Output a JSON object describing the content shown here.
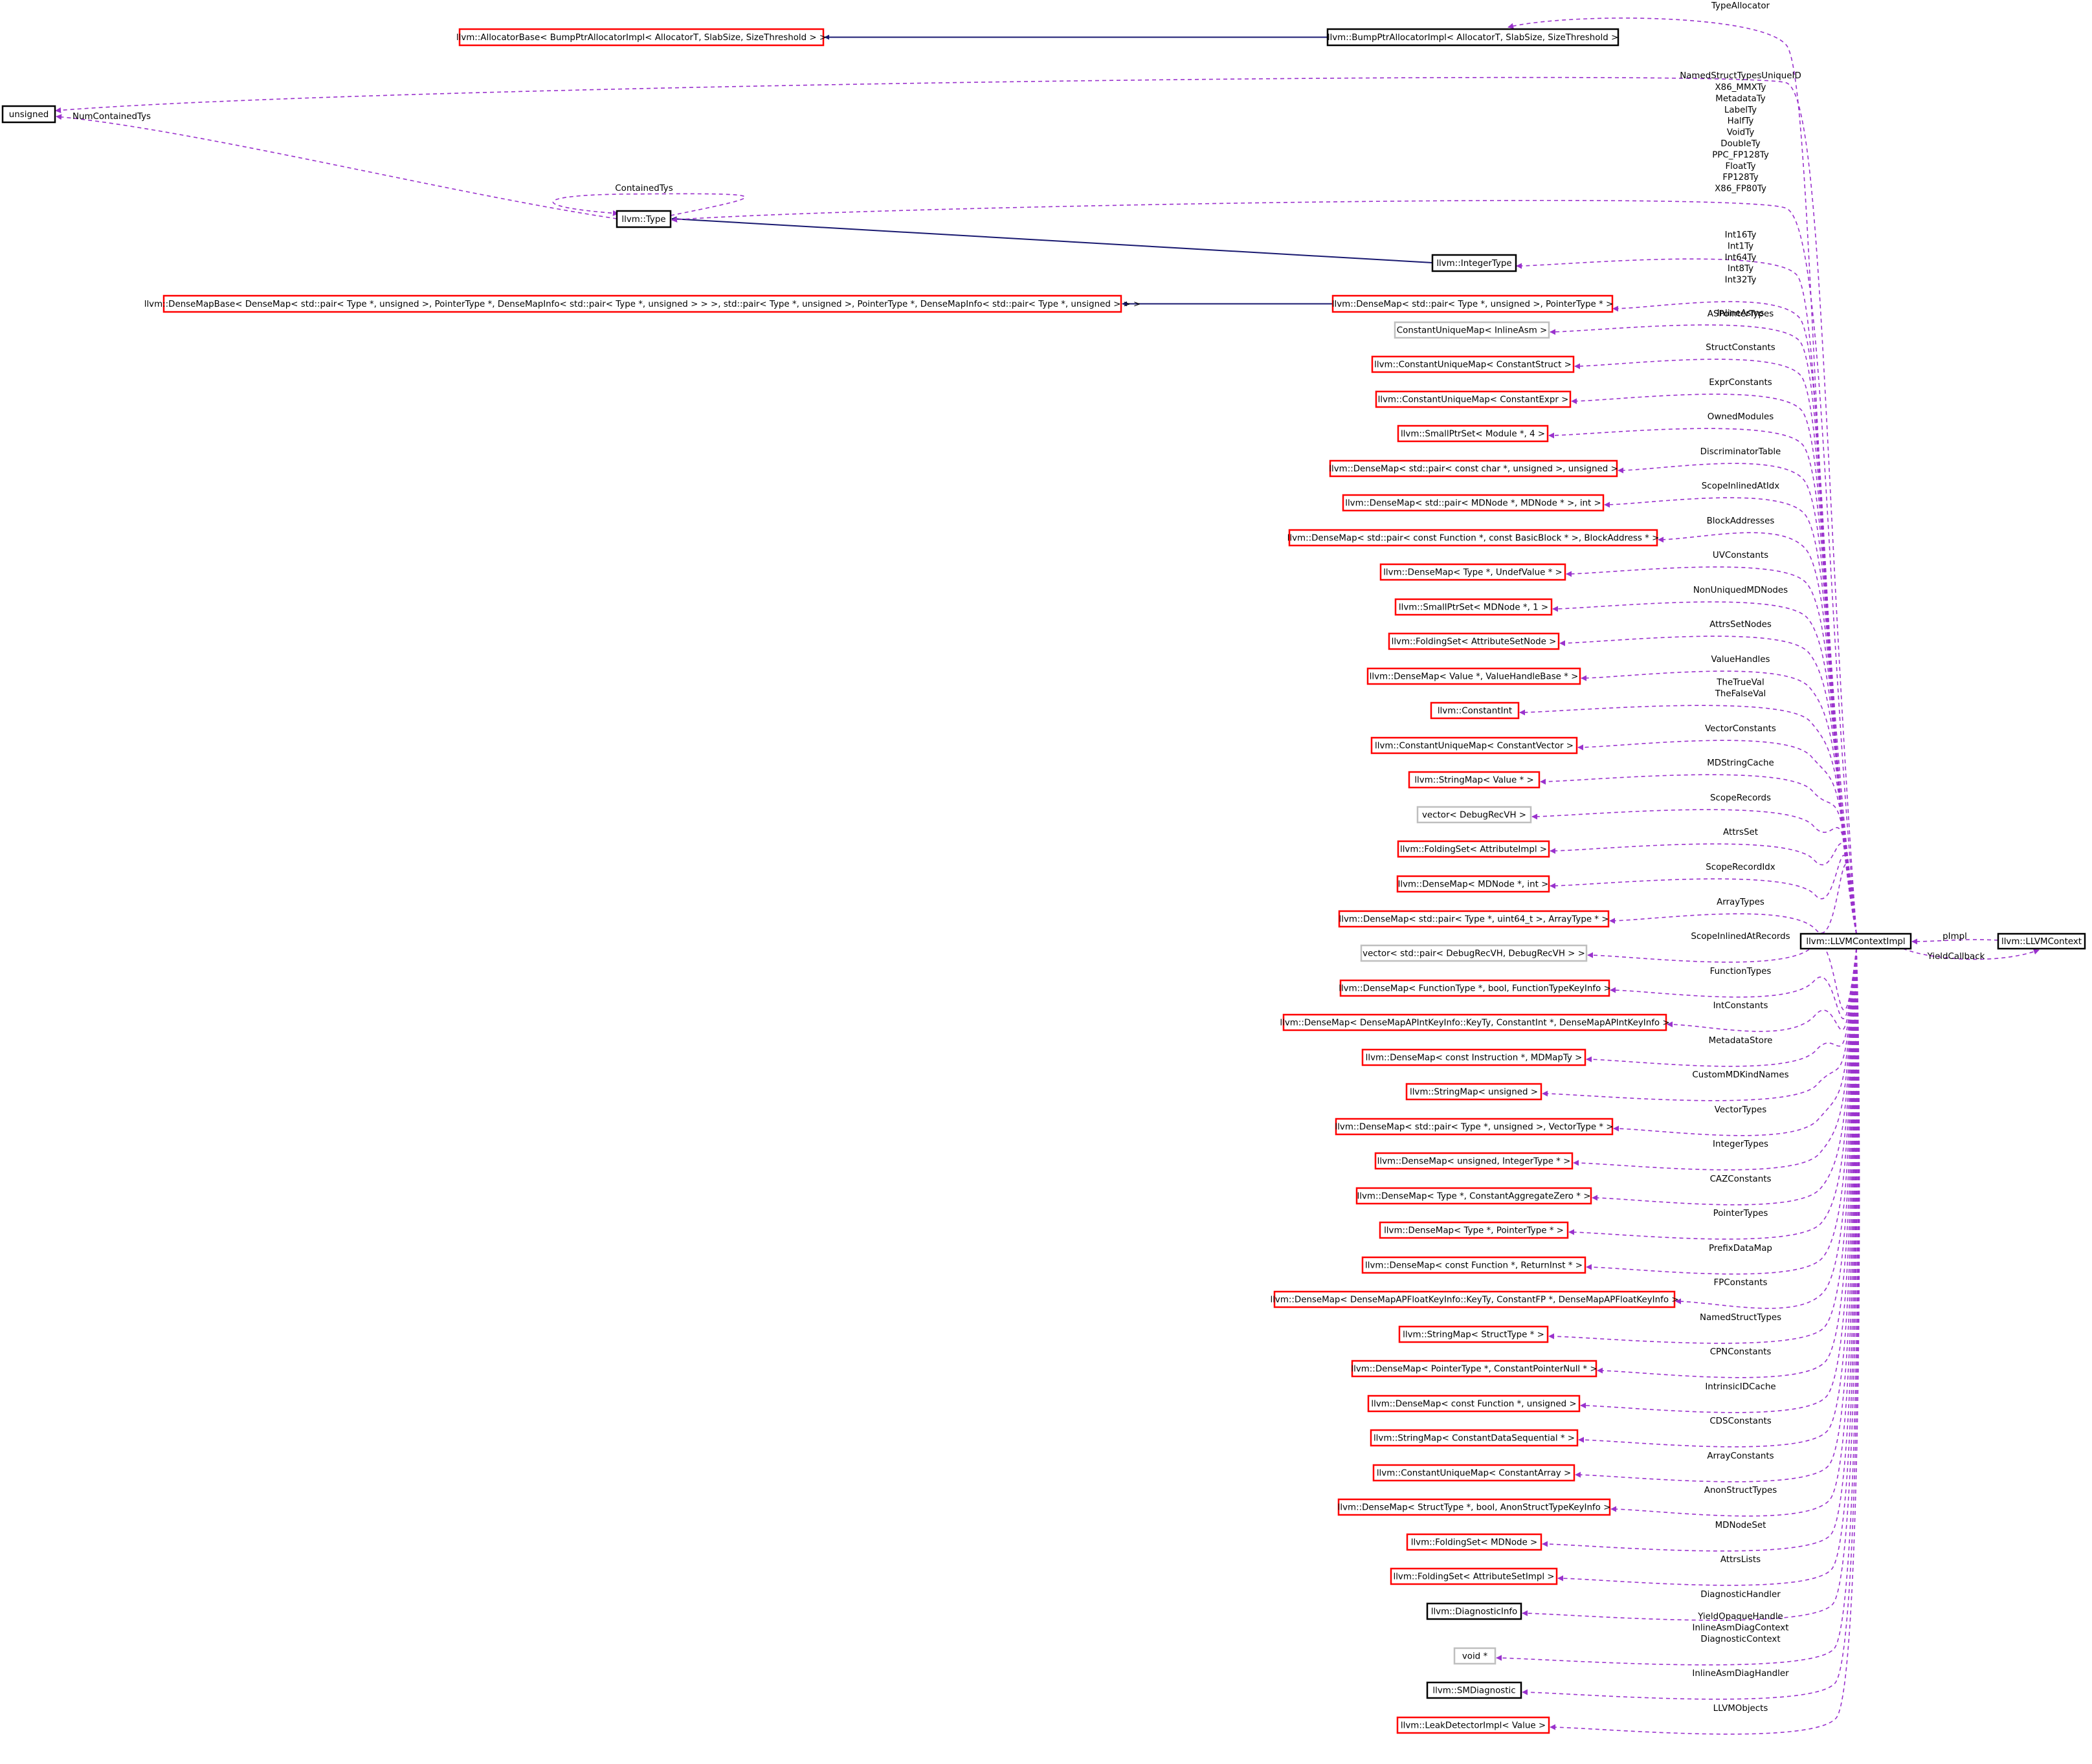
{
  "colors": {
    "inherit_edge": "#191970",
    "member_edge": "#9a32cd",
    "border_red": "#ff0000",
    "border_black": "#000000",
    "border_gray": "#bfbfbf",
    "focus_fill": "#bfbfbf"
  },
  "center": {
    "id": "impl",
    "label": "llvm::LLVMContextImpl"
  },
  "context": {
    "id": "ctx",
    "label": "llvm::LLVMContext"
  },
  "nodes": [
    {
      "id": "allocbase",
      "label": "llvm::AllocatorBase< BumpPtrAllocatorImpl< AllocatorT, SlabSize, SizeThreshold > >",
      "border": "red"
    },
    {
      "id": "bump",
      "label": "llvm::BumpPtrAllocatorImpl< AllocatorT, SlabSize, SizeThreshold >",
      "border": "black"
    },
    {
      "id": "unsigned",
      "label": "unsigned",
      "border": "black"
    },
    {
      "id": "type",
      "label": "llvm::Type",
      "border": "black"
    },
    {
      "id": "inttype",
      "label": "llvm::IntegerType",
      "border": "black"
    },
    {
      "id": "densebase",
      "label": "llvm::DenseMapBase< DenseMap< std::pair< Type *, unsigned >, PointerType *, DenseMapInfo< std::pair< Type *, unsigned > > >, std::pair< Type *, unsigned >, PointerType *, DenseMapInfo< std::pair< Type *, unsigned > > >",
      "border": "red"
    },
    {
      "id": "asptr",
      "label": "llvm::DenseMap< std::pair< Type *, unsigned >, PointerType * >",
      "border": "red"
    },
    {
      "id": "n08",
      "label": "ConstantUniqueMap< InlineAsm >",
      "border": "gray"
    },
    {
      "id": "n09",
      "label": "llvm::ConstantUniqueMap< ConstantStruct >",
      "border": "red"
    },
    {
      "id": "n10",
      "label": "llvm::ConstantUniqueMap< ConstantExpr >",
      "border": "red"
    },
    {
      "id": "n11",
      "label": "llvm::SmallPtrSet< Module *, 4 >",
      "border": "red"
    },
    {
      "id": "n12",
      "label": "llvm::DenseMap< std::pair< const char *, unsigned >, unsigned >",
      "border": "red"
    },
    {
      "id": "n13",
      "label": "llvm::DenseMap< std::pair< MDNode *, MDNode * >, int >",
      "border": "red"
    },
    {
      "id": "n14",
      "label": "llvm::DenseMap< std::pair< const Function *, const BasicBlock * >, BlockAddress * >",
      "border": "red"
    },
    {
      "id": "n15",
      "label": "llvm::DenseMap< Type *, UndefValue * >",
      "border": "red"
    },
    {
      "id": "n16",
      "label": "llvm::SmallPtrSet< MDNode *, 1 >",
      "border": "red"
    },
    {
      "id": "n17",
      "label": "llvm::FoldingSet< AttributeSetNode >",
      "border": "red"
    },
    {
      "id": "n18",
      "label": "llvm::DenseMap< Value *, ValueHandleBase * >",
      "border": "red"
    },
    {
      "id": "n19",
      "label": "llvm::ConstantInt",
      "border": "red"
    },
    {
      "id": "n20",
      "label": "llvm::ConstantUniqueMap< ConstantVector >",
      "border": "red"
    },
    {
      "id": "n21",
      "label": "llvm::StringMap< Value * >",
      "border": "red"
    },
    {
      "id": "n22",
      "label": "vector< DebugRecVH >",
      "border": "gray"
    },
    {
      "id": "n23",
      "label": "llvm::FoldingSet< AttributeImpl >",
      "border": "red"
    },
    {
      "id": "n24",
      "label": "llvm::DenseMap< MDNode *, int >",
      "border": "red"
    },
    {
      "id": "n25",
      "label": "llvm::DenseMap< std::pair< Type *, uint64_t >, ArrayType * >",
      "border": "red"
    },
    {
      "id": "n26",
      "label": "vector< std::pair< DebugRecVH, DebugRecVH > >",
      "border": "gray"
    },
    {
      "id": "n27",
      "label": "llvm::DenseMap< FunctionType *, bool, FunctionTypeKeyInfo >",
      "border": "red"
    },
    {
      "id": "n28",
      "label": "llvm::DenseMap< DenseMapAPIntKeyInfo::KeyTy, ConstantInt *, DenseMapAPIntKeyInfo >",
      "border": "red"
    },
    {
      "id": "n29",
      "label": "llvm::DenseMap< const Instruction *, MDMapTy >",
      "border": "red"
    },
    {
      "id": "n30",
      "label": "llvm::StringMap< unsigned >",
      "border": "red"
    },
    {
      "id": "n31",
      "label": "llvm::DenseMap< std::pair< Type *, unsigned >, VectorType * >",
      "border": "red"
    },
    {
      "id": "n32",
      "label": "llvm::DenseMap< unsigned, IntegerType * >",
      "border": "red"
    },
    {
      "id": "n33",
      "label": "llvm::DenseMap< Type *, ConstantAggregateZero * >",
      "border": "red"
    },
    {
      "id": "n34",
      "label": "llvm::DenseMap< Type *, PointerType * >",
      "border": "red"
    },
    {
      "id": "n35",
      "label": "llvm::DenseMap< const Function *, ReturnInst * >",
      "border": "red"
    },
    {
      "id": "n36",
      "label": "llvm::DenseMap< DenseMapAPFloatKeyInfo::KeyTy, ConstantFP *, DenseMapAPFloatKeyInfo >",
      "border": "red"
    },
    {
      "id": "n37",
      "label": "llvm::StringMap< StructType * >",
      "border": "red"
    },
    {
      "id": "n38",
      "label": "llvm::DenseMap< PointerType *, ConstantPointerNull * >",
      "border": "red"
    },
    {
      "id": "n39",
      "label": "llvm::DenseMap< const Function *, unsigned >",
      "border": "red"
    },
    {
      "id": "n40",
      "label": "llvm::StringMap< ConstantDataSequential * >",
      "border": "red"
    },
    {
      "id": "n41",
      "label": "llvm::ConstantUniqueMap< ConstantArray >",
      "border": "red"
    },
    {
      "id": "n42",
      "label": "llvm::DenseMap< StructType *, bool, AnonStructTypeKeyInfo >",
      "border": "red"
    },
    {
      "id": "n43",
      "label": "llvm::FoldingSet< MDNode >",
      "border": "red"
    },
    {
      "id": "n44",
      "label": "llvm::FoldingSet< AttributeSetImpl >",
      "border": "red"
    },
    {
      "id": "n45",
      "label": "llvm::DiagnosticInfo",
      "border": "black"
    },
    {
      "id": "n46",
      "label": "void *",
      "border": "gray"
    },
    {
      "id": "n47",
      "label": "llvm::SMDiagnostic",
      "border": "black"
    },
    {
      "id": "n48",
      "label": "llvm::LeakDetectorImpl< Value >",
      "border": "red"
    }
  ],
  "inheritance": [
    {
      "from": "bump",
      "to": "allocbase"
    },
    {
      "from": "inttype",
      "to": "type"
    },
    {
      "from": "asptr",
      "to": "densebase"
    }
  ],
  "members": [
    {
      "target": "bump",
      "labels": [
        "TypeAllocator"
      ]
    },
    {
      "target": "unsigned",
      "labels": [
        "NamedStructTypesUniqueID"
      ]
    },
    {
      "target": "type",
      "labels": [
        "X86_MMXTy",
        "MetadataTy",
        "LabelTy",
        "HalfTy",
        "VoidTy",
        "DoubleTy",
        "PPC_FP128Ty",
        "FloatTy",
        "FP128Ty",
        "X86_FP80Ty"
      ]
    },
    {
      "target": "inttype",
      "labels": [
        "Int16Ty",
        "Int1Ty",
        "Int64Ty",
        "Int8Ty",
        "Int32Ty"
      ]
    },
    {
      "target": "asptr",
      "labels": [
        "ASPointerTypes"
      ]
    },
    {
      "target": "n08",
      "labels": [
        "InlineAsms"
      ]
    },
    {
      "target": "n09",
      "labels": [
        "StructConstants"
      ]
    },
    {
      "target": "n10",
      "labels": [
        "ExprConstants"
      ]
    },
    {
      "target": "n11",
      "labels": [
        "OwnedModules"
      ]
    },
    {
      "target": "n12",
      "labels": [
        "DiscriminatorTable"
      ]
    },
    {
      "target": "n13",
      "labels": [
        "ScopeInlinedAtIdx"
      ]
    },
    {
      "target": "n14",
      "labels": [
        "BlockAddresses"
      ]
    },
    {
      "target": "n15",
      "labels": [
        "UVConstants"
      ]
    },
    {
      "target": "n16",
      "labels": [
        "NonUniquedMDNodes"
      ]
    },
    {
      "target": "n17",
      "labels": [
        "AttrsSetNodes"
      ]
    },
    {
      "target": "n18",
      "labels": [
        "ValueHandles"
      ]
    },
    {
      "target": "n19",
      "labels": [
        "TheTrueVal",
        "TheFalseVal"
      ]
    },
    {
      "target": "n20",
      "labels": [
        "VectorConstants"
      ]
    },
    {
      "target": "n21",
      "labels": [
        "MDStringCache"
      ]
    },
    {
      "target": "n22",
      "labels": [
        "ScopeRecords"
      ]
    },
    {
      "target": "n23",
      "labels": [
        "AttrsSet"
      ]
    },
    {
      "target": "n24",
      "labels": [
        "ScopeRecordIdx"
      ]
    },
    {
      "target": "n25",
      "labels": [
        "ArrayTypes"
      ]
    },
    {
      "target": "n26",
      "labels": [
        "ScopeInlinedAtRecords"
      ]
    },
    {
      "target": "n27",
      "labels": [
        "FunctionTypes"
      ]
    },
    {
      "target": "n28",
      "labels": [
        "IntConstants"
      ]
    },
    {
      "target": "n29",
      "labels": [
        "MetadataStore"
      ]
    },
    {
      "target": "n30",
      "labels": [
        "CustomMDKindNames"
      ]
    },
    {
      "target": "n31",
      "labels": [
        "VectorTypes"
      ]
    },
    {
      "target": "n32",
      "labels": [
        "IntegerTypes"
      ]
    },
    {
      "target": "n33",
      "labels": [
        "CAZConstants"
      ]
    },
    {
      "target": "n34",
      "labels": [
        "PointerTypes"
      ]
    },
    {
      "target": "n35",
      "labels": [
        "PrefixDataMap"
      ]
    },
    {
      "target": "n36",
      "labels": [
        "FPConstants"
      ]
    },
    {
      "target": "n37",
      "labels": [
        "NamedStructTypes"
      ]
    },
    {
      "target": "n38",
      "labels": [
        "CPNConstants"
      ]
    },
    {
      "target": "n39",
      "labels": [
        "IntrinsicIDCache"
      ]
    },
    {
      "target": "n40",
      "labels": [
        "CDSConstants"
      ]
    },
    {
      "target": "n41",
      "labels": [
        "ArrayConstants"
      ]
    },
    {
      "target": "n42",
      "labels": [
        "AnonStructTypes"
      ]
    },
    {
      "target": "n43",
      "labels": [
        "MDNodeSet"
      ]
    },
    {
      "target": "n44",
      "labels": [
        "AttrsLists"
      ]
    },
    {
      "target": "n45",
      "labels": [
        "DiagnosticHandler"
      ]
    },
    {
      "target": "n46",
      "labels": [
        "YieldOpaqueHandle",
        "InlineAsmDiagContext",
        "DiagnosticContext"
      ]
    },
    {
      "target": "n47",
      "labels": [
        "InlineAsmDiagHandler"
      ]
    },
    {
      "target": "n48",
      "labels": [
        "LLVMObjects"
      ]
    }
  ],
  "type_edges": [
    {
      "from": "type",
      "to": "unsigned",
      "labels": [
        "NumContainedTys"
      ]
    },
    {
      "from": "type",
      "to": "type",
      "labels": [
        "ContainedTys"
      ]
    }
  ],
  "context_edges": [
    {
      "from": "ctx",
      "to": "impl",
      "labels": [
        "pImpl"
      ]
    },
    {
      "from": "impl",
      "to": "ctx",
      "labels": [
        "YieldCallback"
      ]
    }
  ]
}
